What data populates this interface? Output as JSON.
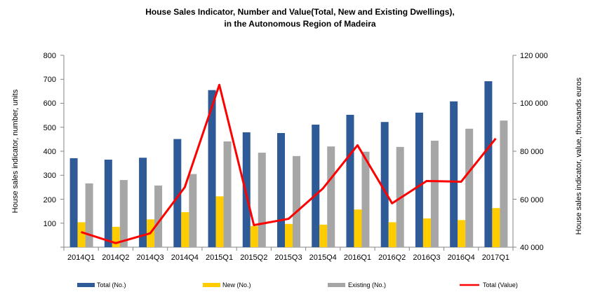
{
  "chart_data": {
    "type": "bar",
    "title": "House Sales Indicator,  Number and Value(Total,  New and Existing Dwellings),",
    "subtitle": "in the Autonomous  Region  of Madeira",
    "categories": [
      "2014Q1",
      "2014Q2",
      "2014Q3",
      "2014Q4",
      "2015Q1",
      "2015Q2",
      "2015Q3",
      "2015Q4",
      "2016Q1",
      "2016Q2",
      "2016Q3",
      "2016Q4",
      "2017Q1"
    ],
    "series": [
      {
        "name": "Total (No.)",
        "type": "bar",
        "axis": "left",
        "color": "#2e5b97",
        "values": [
          371,
          365,
          373,
          451,
          655,
          479,
          476,
          511,
          552,
          522,
          561,
          608,
          692
        ]
      },
      {
        "name": "New (No.)",
        "type": "bar",
        "axis": "left",
        "color": "#ffcc00",
        "values": [
          104,
          85,
          116,
          146,
          212,
          88,
          97,
          94,
          157,
          104,
          120,
          113,
          163
        ]
      },
      {
        "name": "Existing (No.)",
        "type": "bar",
        "axis": "left",
        "color": "#a6a6a6",
        "values": [
          266,
          280,
          257,
          305,
          441,
          394,
          380,
          420,
          398,
          418,
          444,
          494,
          528
        ]
      },
      {
        "name": "Total (Value)",
        "type": "line",
        "axis": "right",
        "color": "#ff0000",
        "values": [
          46300,
          41700,
          45800,
          65000,
          107700,
          49200,
          51800,
          64500,
          82500,
          58300,
          67600,
          67300,
          85300
        ]
      }
    ],
    "ylabel": "House sales indicator, number, units",
    "y2label": "House sales indicator, value, thousands euros",
    "ylim": [
      0,
      800
    ],
    "y2lim": [
      40000,
      120000
    ],
    "yticks": [
      "800",
      "700",
      "600",
      "500",
      "400",
      "300",
      "200",
      "100"
    ],
    "y2ticks": [
      "120 000",
      "100 000",
      "80 000",
      "60 000",
      "40 000"
    ],
    "legend_position": "bottom",
    "grid": false
  }
}
